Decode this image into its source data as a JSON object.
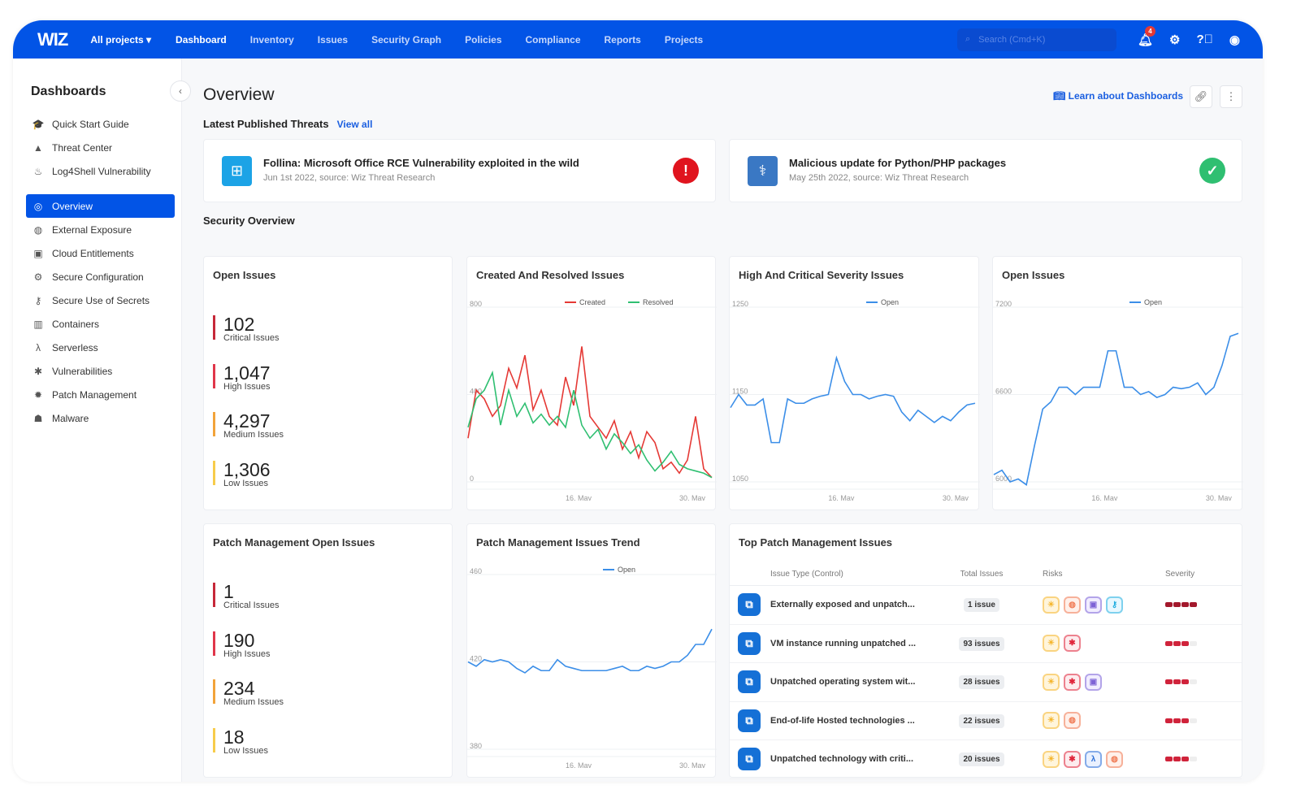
{
  "nav": {
    "logo": "WIZ",
    "project": "All projects ▾",
    "items": [
      "Dashboard",
      "Inventory",
      "Issues",
      "Security Graph",
      "Policies",
      "Compliance",
      "Reports",
      "Projects"
    ],
    "active": "Dashboard",
    "search_placeholder": "Search (Cmd+K)",
    "notifications": "4"
  },
  "sidebar": {
    "title": "Dashboards",
    "groups": [
      [
        {
          "label": "Quick Start Guide",
          "icon": "graduation-cap-icon",
          "g": "🎓"
        },
        {
          "label": "Threat Center",
          "icon": "warning-icon",
          "g": "▲"
        },
        {
          "label": "Log4Shell Vulnerability",
          "icon": "flame-icon",
          "g": "♨"
        }
      ],
      [
        {
          "label": "Overview",
          "icon": "overview-icon",
          "g": "◎",
          "active": true
        },
        {
          "label": "External Exposure",
          "icon": "globe-icon",
          "g": "◍"
        },
        {
          "label": "Cloud Entitlements",
          "icon": "id-card-icon",
          "g": "▣"
        },
        {
          "label": "Secure Configuration",
          "icon": "gear-icon",
          "g": "⚙"
        },
        {
          "label": "Secure Use of Secrets",
          "icon": "key-icon",
          "g": "⚷"
        },
        {
          "label": "Containers",
          "icon": "container-icon",
          "g": "▥"
        },
        {
          "label": "Serverless",
          "icon": "lambda-icon",
          "g": "λ"
        },
        {
          "label": "Vulnerabilities",
          "icon": "bug-icon",
          "g": "✱"
        },
        {
          "label": "Patch Management",
          "icon": "patch-icon",
          "g": "✹"
        },
        {
          "label": "Malware",
          "icon": "malware-icon",
          "g": "☗"
        }
      ]
    ]
  },
  "page": {
    "title": "Overview",
    "learn": "Learn about Dashboards",
    "threats_title": "Latest Published Threats",
    "view_all": "View all",
    "security_title": "Security Overview"
  },
  "threats": [
    {
      "title": "Follina: Microsoft Office RCE Vulnerability exploited in the wild",
      "sub": "Jun 1st 2022, source: Wiz Threat Research",
      "icon": "windows-icon",
      "status": "alert",
      "color": "#1ca3e6"
    },
    {
      "title": "Malicious update for Python/PHP packages",
      "sub": "May 25th 2022, source: Wiz Threat Research",
      "icon": "python-icon",
      "status": "resolved",
      "color": "#3a78c4"
    }
  ],
  "open_issues": {
    "title": "Open Issues",
    "stats": [
      {
        "n": "102",
        "l": "Critical Issues",
        "c": "#c62839"
      },
      {
        "n": "1,047",
        "l": "High Issues",
        "c": "#e0364a"
      },
      {
        "n": "4,297",
        "l": "Medium Issues",
        "c": "#f2a33a"
      },
      {
        "n": "1,306",
        "l": "Low Issues",
        "c": "#f7cc4b"
      }
    ]
  },
  "patch_open": {
    "title": "Patch Management Open Issues",
    "stats": [
      {
        "n": "1",
        "l": "Critical Issues",
        "c": "#c62839"
      },
      {
        "n": "190",
        "l": "High Issues",
        "c": "#e0364a"
      },
      {
        "n": "234",
        "l": "Medium Issues",
        "c": "#f2a33a"
      },
      {
        "n": "18",
        "l": "Low Issues",
        "c": "#f7cc4b"
      }
    ]
  },
  "chart_data": [
    {
      "type": "line",
      "title": "Created And Resolved Issues",
      "ylim": [
        0,
        800
      ],
      "yticks": [
        "800",
        "400",
        "0"
      ],
      "xticks": [
        "16. May",
        "30. May"
      ],
      "x": [
        "May 3",
        "May 4",
        "May 5",
        "May 6",
        "May 7",
        "May 8",
        "May 9",
        "May 10",
        "May 11",
        "May 12",
        "May 13",
        "May 14",
        "May 15",
        "May 16",
        "May 17",
        "May 18",
        "May 19",
        "May 20",
        "May 21",
        "May 22",
        "May 23",
        "May 24",
        "May 25",
        "May 26",
        "May 27",
        "May 28",
        "May 29",
        "May 30",
        "May 31",
        "Jun 1",
        "Jun 2"
      ],
      "series": [
        {
          "name": "Created",
          "color": "#e53935",
          "values": [
            200,
            420,
            380,
            300,
            350,
            520,
            430,
            580,
            330,
            420,
            300,
            260,
            480,
            350,
            620,
            300,
            250,
            200,
            280,
            150,
            230,
            110,
            230,
            180,
            60,
            90,
            40,
            100,
            300,
            60,
            20
          ]
        },
        {
          "name": "Resolved",
          "color": "#2fbf71",
          "values": [
            250,
            380,
            420,
            500,
            260,
            420,
            300,
            360,
            270,
            310,
            260,
            300,
            250,
            420,
            260,
            200,
            240,
            150,
            220,
            180,
            130,
            170,
            100,
            50,
            90,
            140,
            80,
            60,
            50,
            40,
            20
          ]
        }
      ]
    },
    {
      "type": "line",
      "title": "High And Critical Severity Issues",
      "ylim": [
        1050,
        1250
      ],
      "yticks": [
        "1250",
        "1150",
        "1050"
      ],
      "xticks": [
        "16. May",
        "30. May"
      ],
      "x": [
        "May 3",
        "May 4",
        "May 5",
        "May 6",
        "May 7",
        "May 8",
        "May 9",
        "May 10",
        "May 11",
        "May 12",
        "May 13",
        "May 14",
        "May 15",
        "May 16",
        "May 17",
        "May 18",
        "May 19",
        "May 20",
        "May 21",
        "May 22",
        "May 23",
        "May 24",
        "May 25",
        "May 26",
        "May 27",
        "May 28",
        "May 29",
        "May 30",
        "May 31",
        "Jun 1",
        "Jun 2"
      ],
      "series": [
        {
          "name": "Open",
          "color": "#3b8ee8",
          "values": [
            1135,
            1150,
            1138,
            1138,
            1145,
            1095,
            1095,
            1145,
            1140,
            1140,
            1145,
            1148,
            1150,
            1192,
            1165,
            1150,
            1150,
            1145,
            1148,
            1150,
            1148,
            1130,
            1120,
            1132,
            1125,
            1118,
            1125,
            1120,
            1130,
            1138,
            1140
          ]
        }
      ]
    },
    {
      "type": "line",
      "title": "Open Issues",
      "ylim": [
        6000,
        7200
      ],
      "yticks": [
        "7200",
        "6600",
        "6000"
      ],
      "xticks": [
        "16. May",
        "30. May"
      ],
      "x": [
        "May 3",
        "May 4",
        "May 5",
        "May 6",
        "May 7",
        "May 8",
        "May 9",
        "May 10",
        "May 11",
        "May 12",
        "May 13",
        "May 14",
        "May 15",
        "May 16",
        "May 17",
        "May 18",
        "May 19",
        "May 20",
        "May 21",
        "May 22",
        "May 23",
        "May 24",
        "May 25",
        "May 26",
        "May 27",
        "May 28",
        "May 29",
        "May 30",
        "May 31",
        "Jun 1",
        "Jun 2"
      ],
      "series": [
        {
          "name": "Open",
          "color": "#3b8ee8",
          "values": [
            6050,
            6080,
            6000,
            6020,
            5980,
            6250,
            6500,
            6550,
            6650,
            6650,
            6600,
            6650,
            6650,
            6650,
            6900,
            6900,
            6650,
            6650,
            6600,
            6620,
            6580,
            6600,
            6650,
            6640,
            6650,
            6680,
            6600,
            6650,
            6800,
            7000,
            7020
          ]
        }
      ]
    },
    {
      "type": "line",
      "title": "Patch Management Issues Trend",
      "ylim": [
        380,
        460
      ],
      "yticks": [
        "460",
        "420",
        "380"
      ],
      "xticks": [
        "16. May",
        "30. May"
      ],
      "x": [
        "May 3",
        "May 4",
        "May 5",
        "May 6",
        "May 7",
        "May 8",
        "May 9",
        "May 10",
        "May 11",
        "May 12",
        "May 13",
        "May 14",
        "May 15",
        "May 16",
        "May 17",
        "May 18",
        "May 19",
        "May 20",
        "May 21",
        "May 22",
        "May 23",
        "May 24",
        "May 25",
        "May 26",
        "May 27",
        "May 28",
        "May 29",
        "May 30",
        "May 31",
        "Jun 1",
        "Jun 2"
      ],
      "series": [
        {
          "name": "Open",
          "color": "#3b8ee8",
          "values": [
            420,
            418,
            421,
            420,
            421,
            420,
            417,
            415,
            418,
            416,
            416,
            421,
            418,
            417,
            416,
            416,
            416,
            416,
            417,
            418,
            416,
            416,
            418,
            417,
            418,
            420,
            420,
            423,
            428,
            428,
            435
          ]
        }
      ]
    }
  ],
  "top_patch": {
    "title": "Top Patch Management Issues",
    "headers": [
      "Issue Type (Control)",
      "Total Issues",
      "Risks",
      "Severity"
    ],
    "rows": [
      {
        "name": "Externally exposed and unpatch...",
        "count": "1 issue",
        "risks": [
          "sun",
          "globe",
          "id",
          "key"
        ],
        "severity": 4
      },
      {
        "name": "VM instance running unpatched ...",
        "count": "93 issues",
        "risks": [
          "sun",
          "bug"
        ],
        "severity": 3
      },
      {
        "name": "Unpatched operating system wit...",
        "count": "28 issues",
        "risks": [
          "sun",
          "bug",
          "id"
        ],
        "severity": 3
      },
      {
        "name": "End-of-life Hosted technologies ...",
        "count": "22 issues",
        "risks": [
          "sun",
          "globe"
        ],
        "severity": 3
      },
      {
        "name": "Unpatched technology with criti...",
        "count": "20 issues",
        "risks": [
          "sun",
          "bug",
          "lambda",
          "globe"
        ],
        "severity": 3
      }
    ]
  }
}
